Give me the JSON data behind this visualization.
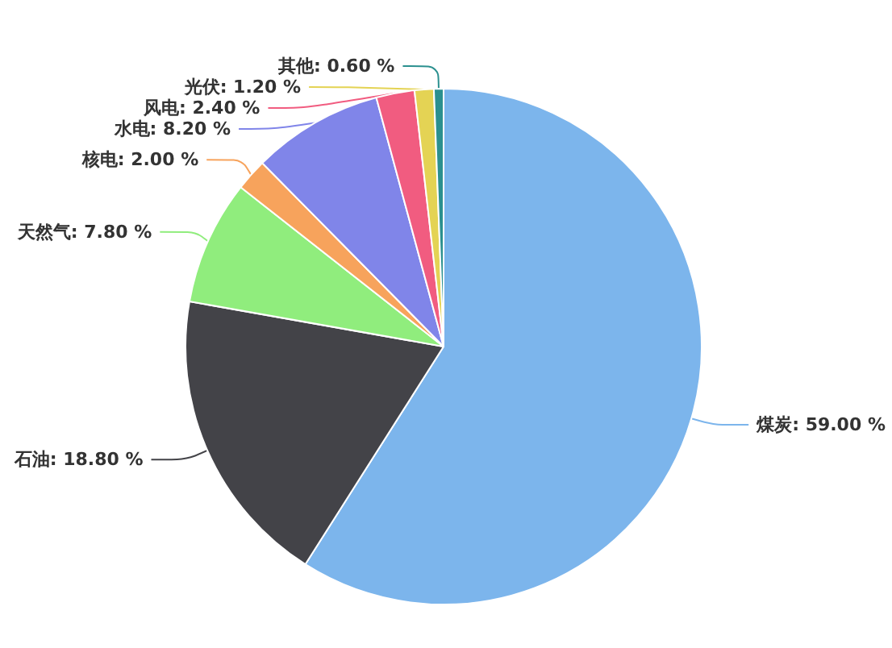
{
  "chart_data": {
    "type": "pie",
    "categories": [
      "煤炭",
      "石油",
      "天然气",
      "核电",
      "水电",
      "风电",
      "光伏",
      "其他"
    ],
    "values": [
      59,
      18.8,
      7.8,
      2,
      8.2,
      2.4,
      1.2,
      0.6
    ],
    "value_labels": [
      "59.00 %",
      "18.80 %",
      "7.80 %",
      "2.00 %",
      "8.20 %",
      "2.40 %",
      "1.20 %",
      "0.60 %"
    ],
    "colors": [
      "#7cb5ec",
      "#434348",
      "#90ed7d",
      "#f7a35c",
      "#8085e9",
      "#f15c80",
      "#e4d354",
      "#2b908f"
    ]
  }
}
